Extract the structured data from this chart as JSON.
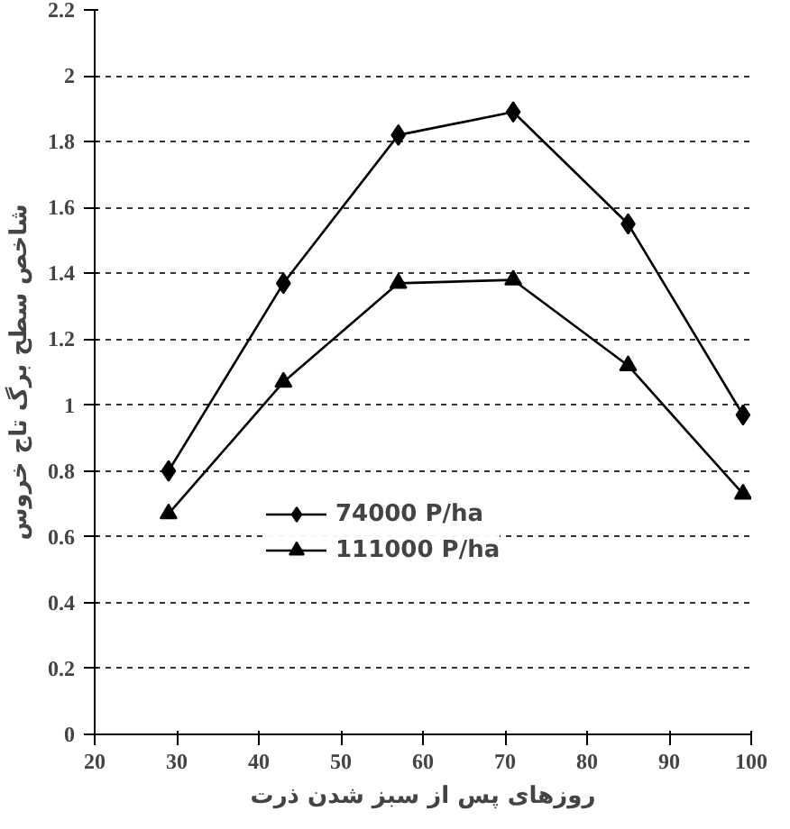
{
  "chart_data": {
    "type": "line",
    "xlabel": "روزهای پس از سبز شدن ذرت",
    "ylabel": "شاخص سطح برگ تاج خروس",
    "x": [
      29,
      43,
      57,
      71,
      85,
      99
    ],
    "series": [
      {
        "name": "74000 P/ha",
        "color": "#000000",
        "marker": "diamond",
        "values": [
          0.8,
          1.37,
          1.82,
          1.89,
          1.55,
          0.97
        ]
      },
      {
        "name": "111000 P/ha",
        "color": "#000000",
        "marker": "triangle",
        "values": [
          0.67,
          1.07,
          1.37,
          1.38,
          1.12,
          0.73
        ]
      }
    ],
    "xlim": [
      20,
      100
    ],
    "xticks": [
      20,
      30,
      40,
      50,
      60,
      70,
      80,
      90,
      100
    ],
    "ylim": [
      0,
      2.2
    ],
    "yticks": [
      0,
      0.2,
      0.4,
      0.6,
      0.8,
      1,
      1.2,
      1.4,
      1.6,
      1.8,
      2,
      2.2
    ],
    "grid": "y",
    "legend": "bottom",
    "line_style": "solid"
  }
}
